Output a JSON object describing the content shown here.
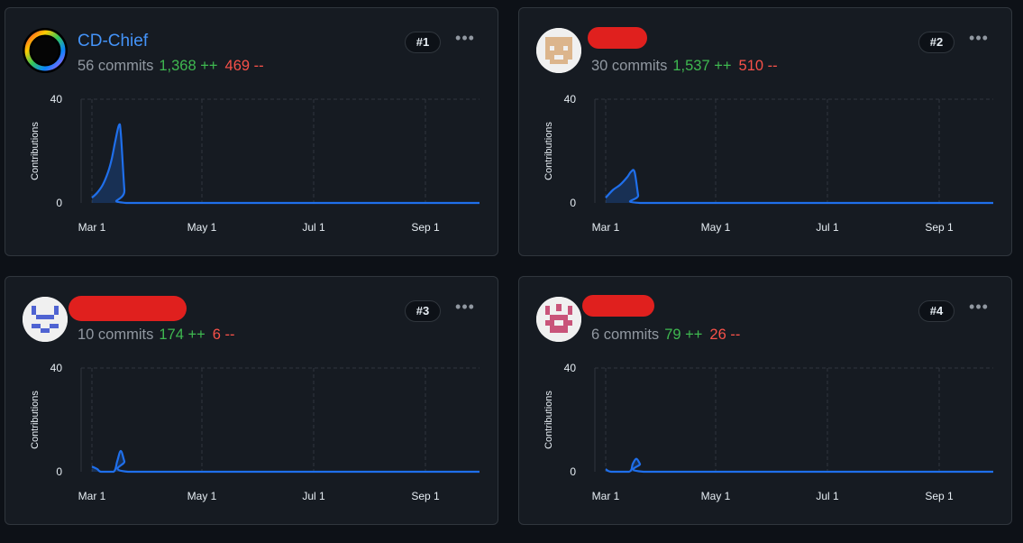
{
  "contributors": [
    {
      "name": "CD-Chief",
      "name_redacted": false,
      "commits": "56 commits",
      "additions": "1,368 ++",
      "deletions": "469 --",
      "rank": "#1",
      "avatar": "ring-avatar",
      "chart_data": {
        "type": "area",
        "x_ticks": [
          "Mar 1",
          "May 1",
          "Jul 1",
          "Sep 1"
        ],
        "y_ticks": [
          "0",
          "40"
        ],
        "ylabel": "Contributions",
        "ylim": [
          0,
          40
        ],
        "points": [
          [
            0,
            2
          ],
          [
            3,
            4
          ],
          [
            6,
            7
          ],
          [
            9,
            12
          ],
          [
            11,
            17
          ],
          [
            13,
            24
          ],
          [
            15,
            30
          ],
          [
            16,
            27
          ],
          [
            18,
            5
          ],
          [
            19,
            0
          ],
          [
            90,
            0
          ],
          [
            198,
            0
          ]
        ]
      }
    },
    {
      "name": "",
      "name_redacted": true,
      "commits": "30 commits",
      "additions": "1,537 ++",
      "deletions": "510 --",
      "rank": "#2",
      "avatar": "pixel-avatar-tan",
      "chart_data": {
        "type": "area",
        "x_ticks": [
          "Mar 1",
          "May 1",
          "Jul 1",
          "Sep 1"
        ],
        "y_ticks": [
          "0",
          "40"
        ],
        "ylabel": "Contributions",
        "ylim": [
          0,
          40
        ],
        "points": [
          [
            0,
            2
          ],
          [
            4,
            5
          ],
          [
            8,
            7
          ],
          [
            12,
            10
          ],
          [
            14,
            12
          ],
          [
            16,
            12
          ],
          [
            18,
            3
          ],
          [
            19,
            0
          ],
          [
            90,
            0
          ],
          [
            198,
            0
          ]
        ]
      }
    },
    {
      "name": "",
      "name_redacted": true,
      "commits": "10 commits",
      "additions": "174 ++",
      "deletions": "6 --",
      "rank": "#3",
      "avatar": "pixel-avatar-blue",
      "chart_data": {
        "type": "area",
        "x_ticks": [
          "Mar 1",
          "May 1",
          "Jul 1",
          "Sep 1"
        ],
        "y_ticks": [
          "0",
          "40"
        ],
        "ylabel": "Contributions",
        "ylim": [
          0,
          40
        ],
        "points": [
          [
            0,
            2
          ],
          [
            3,
            1
          ],
          [
            5,
            0
          ],
          [
            12,
            0
          ],
          [
            14,
            4
          ],
          [
            16,
            8
          ],
          [
            18,
            4
          ],
          [
            20,
            0
          ],
          [
            90,
            0
          ],
          [
            198,
            0
          ]
        ]
      }
    },
    {
      "name": "",
      "name_redacted": true,
      "commits": "6 commits",
      "additions": "79 ++",
      "deletions": "26 --",
      "rank": "#4",
      "avatar": "pixel-avatar-pink",
      "chart_data": {
        "type": "area",
        "x_ticks": [
          "Mar 1",
          "May 1",
          "Jul 1",
          "Sep 1"
        ],
        "y_ticks": [
          "0",
          "40"
        ],
        "ylabel": "Contributions",
        "ylim": [
          0,
          40
        ],
        "points": [
          [
            0,
            1
          ],
          [
            3,
            0
          ],
          [
            13,
            0
          ],
          [
            15,
            3
          ],
          [
            17,
            5
          ],
          [
            19,
            3
          ],
          [
            21,
            0
          ],
          [
            90,
            0
          ],
          [
            198,
            0
          ]
        ]
      }
    }
  ],
  "more_icon": "kebab-menu-icon",
  "colors": {
    "background": "#0d1117",
    "card": "#161b22",
    "border": "#30363d",
    "line": "#1f6feb",
    "additions": "#3fb950",
    "deletions": "#f85149",
    "name": "#4493f8"
  }
}
